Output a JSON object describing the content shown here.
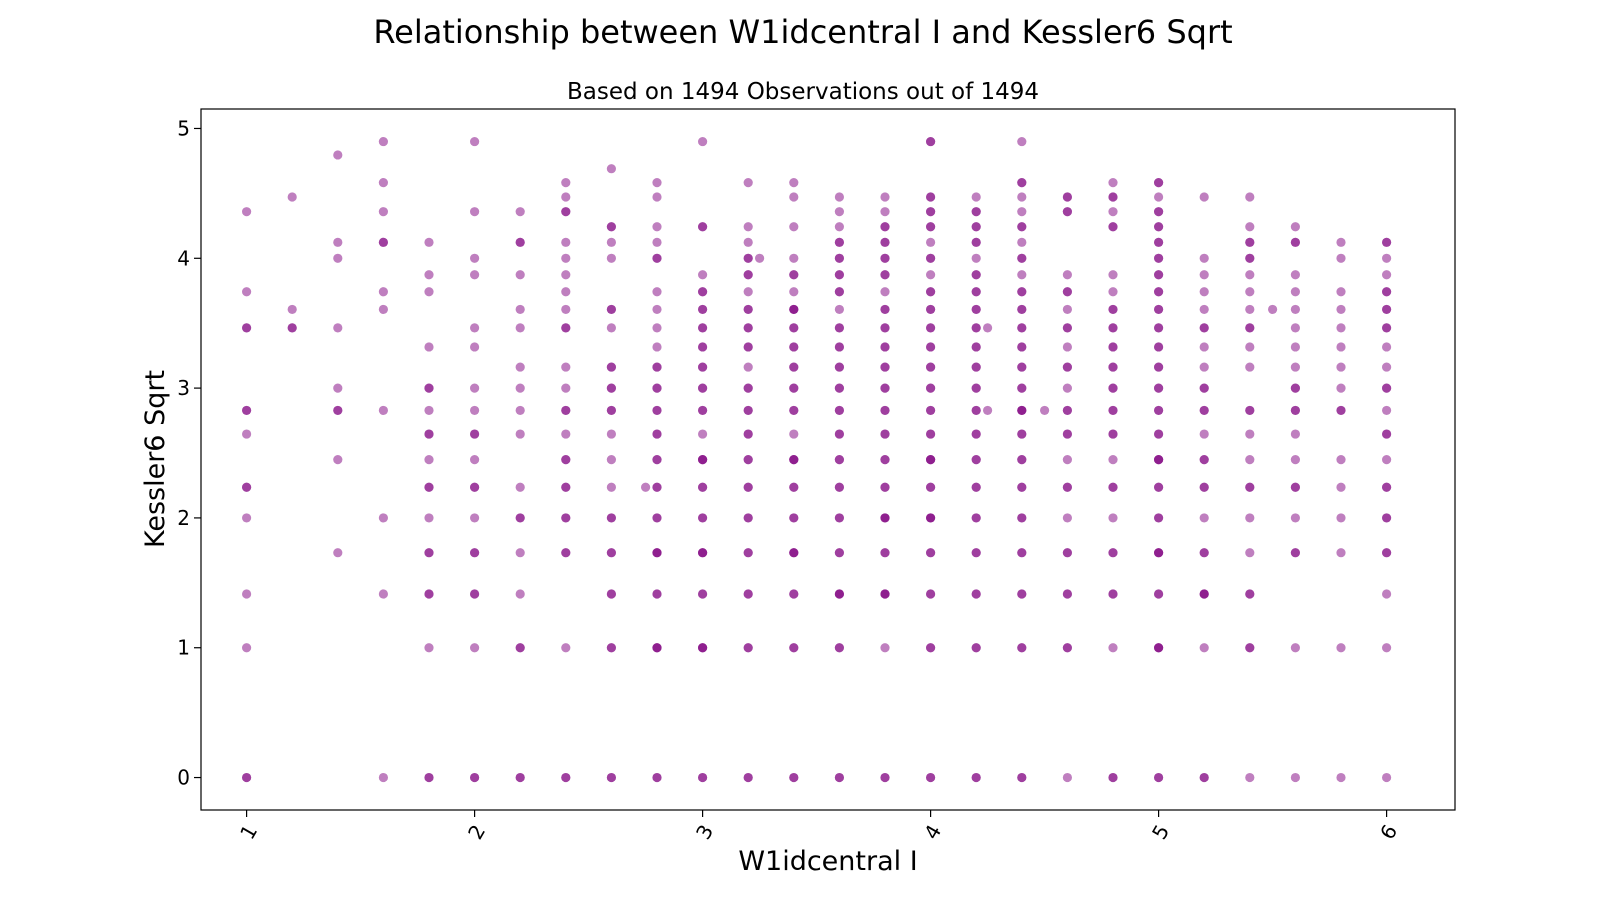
{
  "chart_data": {
    "type": "scatter",
    "title": "Relationship between W1idcentral I and Kessler6 Sqrt",
    "subtitle": "Based on 1494 Observations out of 1494",
    "xlabel": "W1idcentral I",
    "ylabel": "Kessler6 Sqrt",
    "xlim": [
      0.8,
      6.3
    ],
    "ylim": [
      -0.25,
      5.15
    ],
    "xticks": [
      1,
      2,
      3,
      4,
      5,
      6
    ],
    "yticks": [
      0,
      1,
      2,
      3,
      4,
      5
    ],
    "xtick_rotation": -60,
    "grid": false,
    "legend": false,
    "marker_color": "#800080",
    "marker_alpha": 0.5,
    "points_by_x": [
      {
        "x": 1.0,
        "y": [
          0,
          0,
          1,
          1.414,
          2,
          2.236,
          2.236,
          2.646,
          2.828,
          2.828,
          3.464,
          3.464,
          3.742,
          4.359
        ]
      },
      {
        "x": 1.2,
        "y": [
          3.464,
          3.464,
          3.606,
          4.472
        ]
      },
      {
        "x": 1.4,
        "y": [
          1.732,
          2.449,
          2.828,
          2.828,
          3.0,
          3.464,
          4.0,
          4.123,
          4.796
        ]
      },
      {
        "x": 1.6,
        "y": [
          0,
          1.414,
          2.0,
          2.828,
          3.606,
          3.742,
          4.123,
          4.123,
          4.359,
          4.583,
          4.899
        ]
      },
      {
        "x": 1.8,
        "y": [
          0,
          0,
          1,
          1.414,
          1.414,
          1.732,
          1.732,
          2.0,
          2.236,
          2.236,
          2.449,
          2.646,
          2.646,
          2.828,
          3.0,
          3.0,
          3.317,
          3.742,
          3.873,
          4.123
        ]
      },
      {
        "x": 2.0,
        "y": [
          0,
          0,
          1,
          1.414,
          1.414,
          1.732,
          1.732,
          2.0,
          2.236,
          2.236,
          2.449,
          2.646,
          2.646,
          2.828,
          3.0,
          3.317,
          3.464,
          3.873,
          4.0,
          4.359,
          4.899
        ]
      },
      {
        "x": 2.2,
        "y": [
          0,
          0,
          1,
          1,
          1.414,
          1.732,
          2.0,
          2.0,
          2.236,
          2.646,
          2.828,
          3.0,
          3.162,
          3.464,
          3.606,
          3.873,
          4.123,
          4.123,
          4.359
        ]
      },
      {
        "x": 2.4,
        "y": [
          0,
          0,
          1,
          1.732,
          1.732,
          2.0,
          2.0,
          2.236,
          2.236,
          2.449,
          2.449,
          2.646,
          2.828,
          2.828,
          3.0,
          3.162,
          3.464,
          3.464,
          3.606,
          3.742,
          3.873,
          4.0,
          4.123,
          4.359,
          4.359,
          4.472,
          4.583
        ]
      },
      {
        "x": 2.6,
        "y": [
          0,
          0,
          1,
          1,
          1.414,
          1.414,
          1.732,
          1.732,
          2.0,
          2.0,
          2.236,
          2.449,
          2.646,
          2.828,
          2.828,
          3.0,
          3.0,
          3.162,
          3.162,
          3.464,
          3.606,
          3.606,
          4.0,
          4.123,
          4.243,
          4.243,
          4.69
        ]
      },
      {
        "x": 2.8,
        "y": [
          0,
          0,
          1,
          1,
          1,
          1.414,
          1.414,
          1.732,
          1.732,
          1.732,
          2.0,
          2.0,
          2.236,
          2.236,
          2.449,
          2.449,
          2.646,
          2.646,
          2.828,
          2.828,
          3.0,
          3.0,
          3.162,
          3.162,
          3.317,
          3.464,
          3.606,
          3.742,
          4.0,
          4.0,
          4.123,
          4.243,
          4.472,
          4.583
        ]
      },
      {
        "x": 2.75,
        "y": [
          2.236
        ]
      },
      {
        "x": 3.0,
        "y": [
          0,
          0,
          1,
          1,
          1,
          1.414,
          1.414,
          1.732,
          1.732,
          1.732,
          2.0,
          2.0,
          2.236,
          2.236,
          2.449,
          2.449,
          2.449,
          2.646,
          2.828,
          2.828,
          3.0,
          3.0,
          3.162,
          3.162,
          3.317,
          3.317,
          3.464,
          3.464,
          3.606,
          3.606,
          3.742,
          3.742,
          3.873,
          4.243,
          4.243,
          4.899
        ]
      },
      {
        "x": 3.2,
        "y": [
          0,
          0,
          1,
          1,
          1.414,
          1.414,
          1.732,
          1.732,
          2.0,
          2.0,
          2.236,
          2.236,
          2.449,
          2.449,
          2.646,
          2.646,
          2.828,
          2.828,
          3.0,
          3.0,
          3.162,
          3.317,
          3.317,
          3.464,
          3.464,
          3.606,
          3.606,
          3.742,
          3.873,
          3.873,
          4.0,
          4.0,
          4.123,
          4.243,
          4.583
        ]
      },
      {
        "x": 3.25,
        "y": [
          4.0
        ]
      },
      {
        "x": 3.4,
        "y": [
          0,
          0,
          1,
          1,
          1.414,
          1.414,
          1.732,
          1.732,
          1.732,
          2.0,
          2.0,
          2.236,
          2.236,
          2.449,
          2.449,
          2.449,
          2.646,
          2.828,
          2.828,
          3.0,
          3.0,
          3.162,
          3.162,
          3.317,
          3.317,
          3.464,
          3.464,
          3.606,
          3.606,
          3.606,
          3.742,
          3.873,
          3.873,
          4.0,
          4.243,
          4.472,
          4.583
        ]
      },
      {
        "x": 3.6,
        "y": [
          0,
          0,
          1,
          1,
          1.414,
          1.414,
          1.414,
          1.732,
          1.732,
          2.0,
          2.0,
          2.236,
          2.236,
          2.449,
          2.449,
          2.646,
          2.646,
          2.828,
          2.828,
          3.0,
          3.0,
          3.162,
          3.162,
          3.317,
          3.317,
          3.464,
          3.464,
          3.606,
          3.742,
          3.742,
          3.873,
          3.873,
          4.0,
          4.0,
          4.123,
          4.123,
          4.243,
          4.359,
          4.472
        ]
      },
      {
        "x": 3.8,
        "y": [
          0,
          0,
          1,
          1.414,
          1.414,
          1.414,
          1.732,
          1.732,
          2.0,
          2.0,
          2.0,
          2.236,
          2.236,
          2.449,
          2.449,
          2.646,
          2.646,
          2.828,
          2.828,
          3.0,
          3.0,
          3.162,
          3.162,
          3.317,
          3.317,
          3.464,
          3.464,
          3.606,
          3.606,
          3.742,
          3.873,
          3.873,
          4.0,
          4.0,
          4.123,
          4.123,
          4.243,
          4.243,
          4.359,
          4.472
        ]
      },
      {
        "x": 4.0,
        "y": [
          0,
          0,
          1,
          1,
          1.414,
          1.414,
          1.732,
          1.732,
          2.0,
          2.0,
          2.0,
          2.236,
          2.236,
          2.449,
          2.449,
          2.449,
          2.646,
          2.646,
          2.828,
          2.828,
          3.0,
          3.0,
          3.162,
          3.162,
          3.317,
          3.317,
          3.464,
          3.464,
          3.606,
          3.606,
          3.742,
          3.742,
          3.873,
          4.0,
          4.0,
          4.123,
          4.243,
          4.243,
          4.359,
          4.359,
          4.472,
          4.472,
          4.899,
          4.899
        ]
      },
      {
        "x": 4.2,
        "y": [
          0,
          0,
          1,
          1,
          1.414,
          1.414,
          1.732,
          1.732,
          2.0,
          2.0,
          2.236,
          2.236,
          2.449,
          2.449,
          2.646,
          2.646,
          2.828,
          2.828,
          3.0,
          3.0,
          3.162,
          3.162,
          3.317,
          3.317,
          3.464,
          3.464,
          3.606,
          3.606,
          3.742,
          3.742,
          3.873,
          3.873,
          4.0,
          4.123,
          4.123,
          4.243,
          4.243,
          4.359,
          4.359,
          4.472
        ]
      },
      {
        "x": 4.25,
        "y": [
          2.828,
          3.464
        ]
      },
      {
        "x": 4.4,
        "y": [
          0,
          0,
          1,
          1,
          1.414,
          1.414,
          1.732,
          1.732,
          2.0,
          2.0,
          2.236,
          2.236,
          2.449,
          2.449,
          2.646,
          2.646,
          2.828,
          2.828,
          2.828,
          3.0,
          3.0,
          3.162,
          3.162,
          3.317,
          3.317,
          3.464,
          3.464,
          3.606,
          3.606,
          3.742,
          3.742,
          3.873,
          4.0,
          4.0,
          4.123,
          4.243,
          4.243,
          4.359,
          4.472,
          4.583,
          4.583,
          4.899
        ]
      },
      {
        "x": 4.5,
        "y": [
          2.828
        ]
      },
      {
        "x": 4.6,
        "y": [
          0,
          1,
          1,
          1.414,
          1.414,
          1.732,
          1.732,
          2.0,
          2.236,
          2.236,
          2.449,
          2.646,
          2.646,
          2.828,
          2.828,
          3.0,
          3.162,
          3.162,
          3.317,
          3.464,
          3.464,
          3.606,
          3.742,
          3.742,
          3.873,
          4.359,
          4.359,
          4.472,
          4.472
        ]
      },
      {
        "x": 4.8,
        "y": [
          0,
          0,
          1,
          1.414,
          1.414,
          1.732,
          1.732,
          2.0,
          2.236,
          2.236,
          2.449,
          2.646,
          2.646,
          2.828,
          2.828,
          3.0,
          3.0,
          3.162,
          3.162,
          3.317,
          3.317,
          3.464,
          3.464,
          3.606,
          3.606,
          3.742,
          3.873,
          4.243,
          4.243,
          4.359,
          4.472,
          4.472,
          4.583
        ]
      },
      {
        "x": 5.0,
        "y": [
          0,
          0,
          1,
          1,
          1,
          1.414,
          1.414,
          1.732,
          1.732,
          1.732,
          2.0,
          2.0,
          2.236,
          2.236,
          2.449,
          2.449,
          2.449,
          2.646,
          2.646,
          2.828,
          2.828,
          3.0,
          3.0,
          3.162,
          3.162,
          3.317,
          3.317,
          3.464,
          3.464,
          3.606,
          3.606,
          3.742,
          3.742,
          3.873,
          3.873,
          4.0,
          4.0,
          4.123,
          4.123,
          4.243,
          4.243,
          4.359,
          4.359,
          4.472,
          4.583,
          4.583
        ]
      },
      {
        "x": 5.2,
        "y": [
          0,
          0,
          1,
          1.414,
          1.414,
          1.414,
          1.732,
          1.732,
          2.0,
          2.236,
          2.236,
          2.449,
          2.449,
          2.646,
          2.828,
          2.828,
          3.0,
          3.0,
          3.162,
          3.317,
          3.464,
          3.464,
          3.606,
          3.742,
          3.873,
          4.0,
          4.472
        ]
      },
      {
        "x": 5.4,
        "y": [
          0,
          1,
          1,
          1.414,
          1.414,
          1.732,
          2.0,
          2.236,
          2.236,
          2.449,
          2.646,
          2.828,
          2.828,
          3.162,
          3.317,
          3.464,
          3.464,
          3.606,
          3.742,
          3.873,
          4.0,
          4.0,
          4.123,
          4.123,
          4.243,
          4.472
        ]
      },
      {
        "x": 5.5,
        "y": [
          3.606
        ]
      },
      {
        "x": 5.6,
        "y": [
          0,
          1,
          1.732,
          1.732,
          2.0,
          2.236,
          2.236,
          2.449,
          2.646,
          2.828,
          2.828,
          3.0,
          3.0,
          3.162,
          3.317,
          3.464,
          3.606,
          3.742,
          3.873,
          4.123,
          4.123,
          4.243
        ]
      },
      {
        "x": 5.8,
        "y": [
          0,
          1,
          1.732,
          2.0,
          2.236,
          2.449,
          2.828,
          2.828,
          3.0,
          3.162,
          3.317,
          3.464,
          3.606,
          3.742,
          4.0,
          4.123
        ]
      },
      {
        "x": 6.0,
        "y": [
          0,
          1,
          1.414,
          1.732,
          1.732,
          2.0,
          2.0,
          2.236,
          2.236,
          2.449,
          2.646,
          2.646,
          2.828,
          3.0,
          3.0,
          3.162,
          3.317,
          3.464,
          3.464,
          3.606,
          3.606,
          3.742,
          3.742,
          3.873,
          4.0,
          4.123,
          4.123
        ]
      }
    ]
  }
}
